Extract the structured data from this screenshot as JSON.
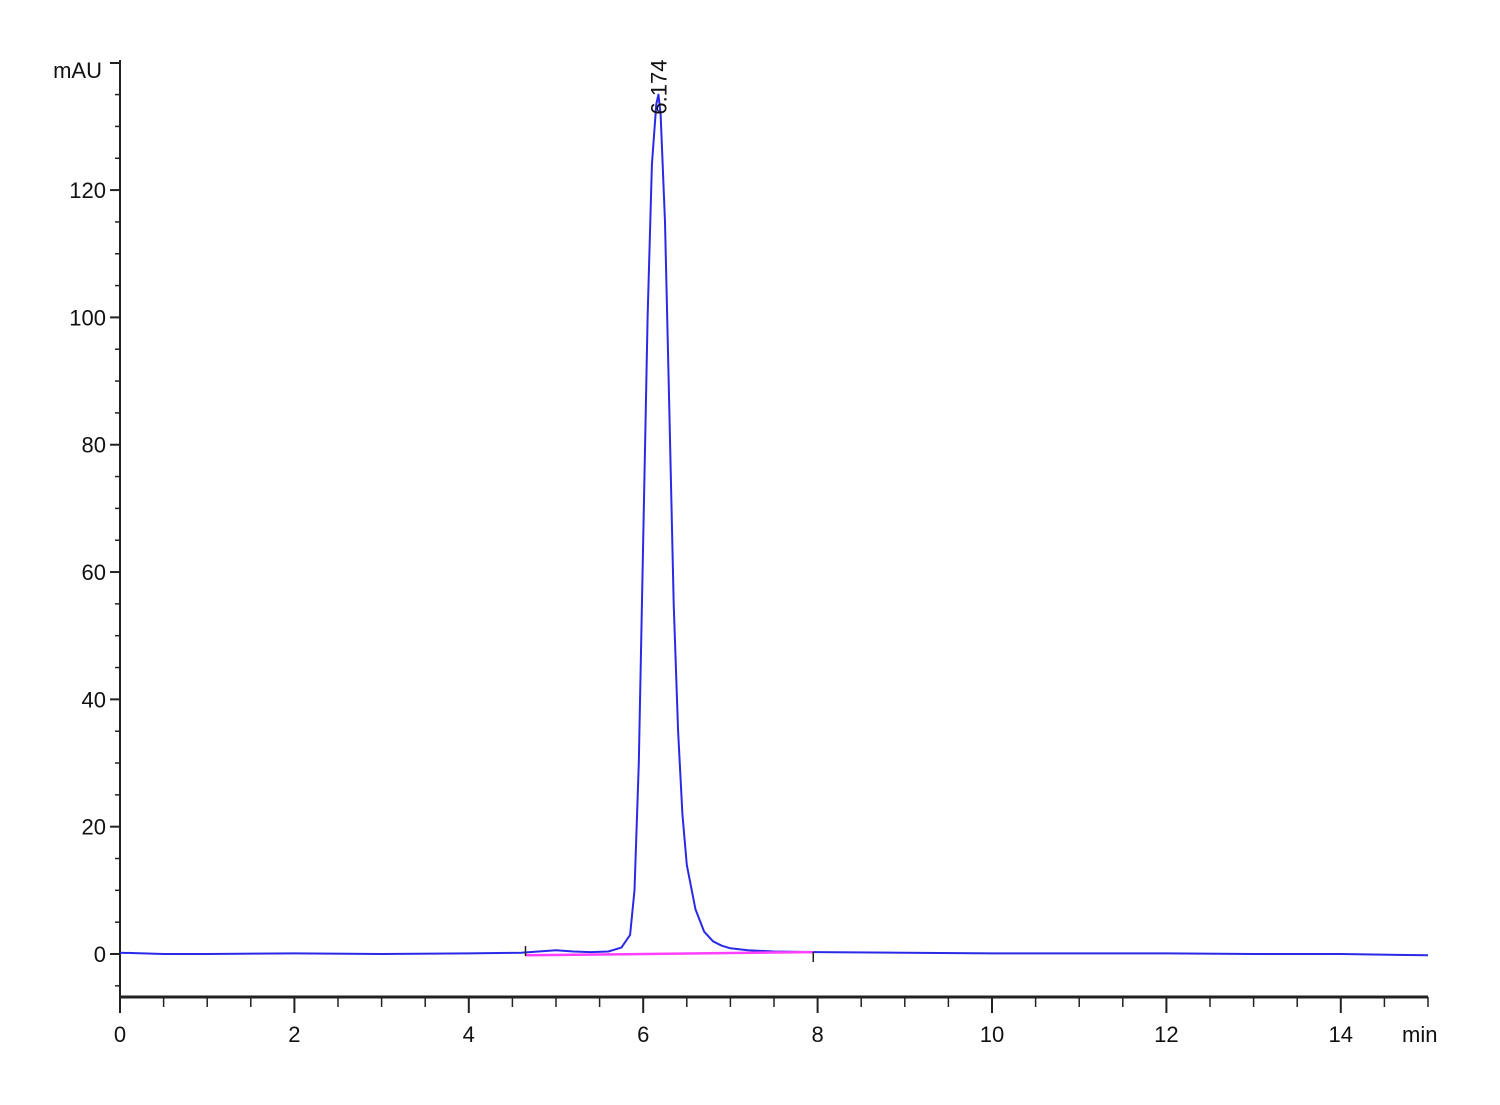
{
  "chart_data": {
    "type": "line",
    "ylabel": "mAU",
    "xlabel": "min",
    "xlim": [
      0,
      15
    ],
    "ylim": [
      -7,
      140
    ],
    "x_ticks_major": [
      0,
      2,
      4,
      6,
      8,
      10,
      12,
      14
    ],
    "x_tick_labels": [
      "0",
      "2",
      "4",
      "6",
      "8",
      "10",
      "12",
      "14"
    ],
    "x_minor_step": 0.5,
    "y_ticks_major": [
      0,
      20,
      40,
      60,
      80,
      100,
      120
    ],
    "y_tick_labels": [
      "0",
      "20",
      "40",
      "60",
      "80",
      "100",
      "120"
    ],
    "y_minor_step": 5,
    "grid": false,
    "series": [
      {
        "color": "#2a2ae6",
        "x": [
          0.0,
          0.5,
          1.0,
          2.0,
          3.0,
          4.0,
          4.6,
          5.0,
          5.2,
          5.4,
          5.6,
          5.75,
          5.85,
          5.9,
          5.95,
          6.0,
          6.05,
          6.1,
          6.15,
          6.174,
          6.2,
          6.25,
          6.3,
          6.35,
          6.4,
          6.45,
          6.5,
          6.6,
          6.7,
          6.8,
          6.9,
          7.0,
          7.2,
          7.5,
          8.0,
          9.0,
          10.0,
          11.0,
          12.0,
          13.0,
          14.0,
          15.0
        ],
        "y": [
          0.2,
          0.0,
          0.0,
          0.1,
          0.0,
          0.1,
          0.2,
          0.6,
          0.4,
          0.3,
          0.4,
          1.0,
          3.0,
          10.0,
          30.0,
          65.0,
          100.0,
          124.0,
          133.5,
          135.0,
          132.0,
          115.0,
          85.0,
          55.0,
          35.0,
          22.0,
          14.0,
          7.0,
          3.5,
          2.0,
          1.3,
          0.9,
          0.6,
          0.4,
          0.3,
          0.2,
          0.1,
          0.1,
          0.1,
          0.0,
          0.0,
          -0.2
        ]
      },
      {
        "color": "#ff40ff",
        "x": [
          4.65,
          7.95
        ],
        "y": [
          -0.2,
          0.3
        ]
      }
    ],
    "integration_marks_x": [
      4.65,
      7.95
    ],
    "annotations": [
      {
        "text": "6.174",
        "x": 6.174,
        "y": 135.0
      }
    ]
  }
}
